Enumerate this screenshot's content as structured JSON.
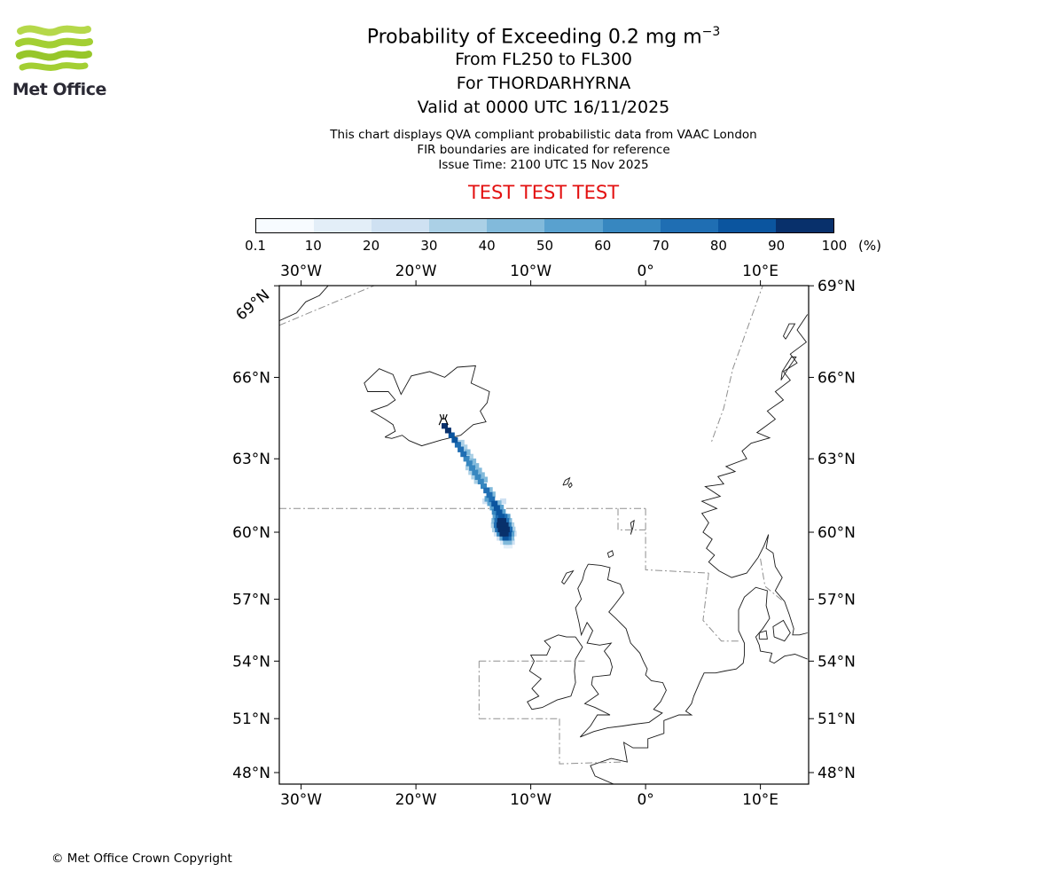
{
  "logo": {
    "text": "Met Office"
  },
  "header": {
    "title_main": "Probability of Exceeding 0.2 mg m",
    "title_exponent": "−3",
    "subtitle1": "From FL250 to FL300",
    "subtitle2": "For THORDARHYRNA",
    "subtitle3": "Valid at 0000 UTC 16/11/2025",
    "note1": "This chart displays QVA compliant probabilistic data from VAAC London",
    "note2": "FIR boundaries are indicated for reference",
    "note3": "Issue Time: 2100 UTC 15 Nov 2025",
    "test_banner": "TEST TEST TEST",
    "test_color": "#e31010"
  },
  "legend": {
    "tick_labels": [
      "0.1",
      "10",
      "20",
      "30",
      "40",
      "50",
      "60",
      "70",
      "80",
      "90",
      "100"
    ],
    "unit": "(%)",
    "colors": [
      "#f7fbff",
      "#e3eef8",
      "#cfe1f2",
      "#abd0e6",
      "#82badb",
      "#59a1cf",
      "#3787c0",
      "#1f6eb3",
      "#0b559f",
      "#08306b"
    ]
  },
  "map": {
    "lon_labels": [
      {
        "text": "30°W",
        "lon": -30
      },
      {
        "text": "20°W",
        "lon": -20
      },
      {
        "text": "10°W",
        "lon": -10
      },
      {
        "text": "0°",
        "lon": 0
      },
      {
        "text": "10°E",
        "lon": 10
      }
    ],
    "lat_labels": [
      {
        "text": "69°N",
        "lat": 69
      },
      {
        "text": "66°N",
        "lat": 66
      },
      {
        "text": "63°N",
        "lat": 63
      },
      {
        "text": "60°N",
        "lat": 60
      },
      {
        "text": "57°N",
        "lat": 57
      },
      {
        "text": "54°N",
        "lat": 54
      },
      {
        "text": "51°N",
        "lat": 51
      },
      {
        "text": "48°N",
        "lat": 48
      }
    ]
  },
  "chart_data": {
    "type": "map",
    "projection": "mercator",
    "extent": {
      "lon_min": -31.9,
      "lon_max": 14.1,
      "lat_min": 47.3,
      "lat_max": 69.0
    },
    "quantity": "Probability of exceeding 0.2 mg m-3 volcanic ash, FL250-FL300",
    "levels_percent": [
      0.1,
      10,
      20,
      30,
      40,
      50,
      60,
      70,
      80,
      90,
      100
    ],
    "volcano": {
      "name": "THORDARHYRNA",
      "lon": -17.6,
      "lat": 64.45
    },
    "plume_cells": [
      [
        -17.5,
        64.25,
        9
      ],
      [
        -17.2,
        64.08,
        9
      ],
      [
        -16.9,
        63.9,
        8
      ],
      [
        -16.62,
        63.72,
        8
      ],
      [
        -16.35,
        63.54,
        7
      ],
      [
        -16.1,
        63.36,
        7
      ],
      [
        -15.85,
        63.18,
        7
      ],
      [
        -15.6,
        63.0,
        6
      ],
      [
        -15.35,
        62.82,
        6
      ],
      [
        -15.1,
        62.64,
        6
      ],
      [
        -14.85,
        62.46,
        6
      ],
      [
        -14.6,
        62.28,
        6
      ],
      [
        -14.35,
        62.1,
        6
      ],
      [
        -14.1,
        61.92,
        6
      ],
      [
        -16.05,
        63.62,
        3
      ],
      [
        -15.78,
        63.44,
        3
      ],
      [
        -15.52,
        63.26,
        4
      ],
      [
        -15.27,
        63.08,
        3
      ],
      [
        -15.02,
        62.9,
        4
      ],
      [
        -14.77,
        62.72,
        4
      ],
      [
        -14.52,
        62.54,
        4
      ],
      [
        -14.27,
        62.36,
        4
      ],
      [
        -14.02,
        62.18,
        4
      ],
      [
        -15.42,
        62.66,
        3
      ],
      [
        -15.17,
        62.48,
        3
      ],
      [
        -14.92,
        62.3,
        3
      ],
      [
        -14.67,
        62.12,
        3
      ],
      [
        -13.85,
        61.74,
        7
      ],
      [
        -13.6,
        61.56,
        7
      ],
      [
        -13.38,
        61.38,
        7
      ],
      [
        -13.16,
        61.2,
        8
      ],
      [
        -12.95,
        61.02,
        8
      ],
      [
        -12.75,
        60.84,
        8
      ],
      [
        -13.75,
        61.4,
        5
      ],
      [
        -13.52,
        61.22,
        5
      ],
      [
        -13.3,
        61.04,
        5
      ],
      [
        -13.58,
        61.76,
        4
      ],
      [
        -13.34,
        61.58,
        4
      ],
      [
        -12.82,
        61.22,
        4
      ],
      [
        -12.62,
        61.04,
        5
      ],
      [
        -12.45,
        60.86,
        5
      ],
      [
        -13.12,
        60.86,
        6
      ],
      [
        -12.4,
        61.3,
        2
      ],
      [
        -13.95,
        61.3,
        2
      ],
      [
        -13.05,
        60.66,
        5
      ],
      [
        -12.8,
        60.66,
        7
      ],
      [
        -12.55,
        60.66,
        8
      ],
      [
        -12.3,
        60.66,
        7
      ],
      [
        -12.05,
        60.66,
        5
      ],
      [
        -13.15,
        60.48,
        4
      ],
      [
        -12.9,
        60.48,
        7
      ],
      [
        -12.65,
        60.48,
        9
      ],
      [
        -12.4,
        60.48,
        9
      ],
      [
        -12.15,
        60.48,
        7
      ],
      [
        -11.9,
        60.48,
        4
      ],
      [
        -13.2,
        60.3,
        3
      ],
      [
        -12.95,
        60.3,
        7
      ],
      [
        -12.7,
        60.3,
        9
      ],
      [
        -12.45,
        60.3,
        9
      ],
      [
        -12.2,
        60.3,
        9
      ],
      [
        -11.95,
        60.3,
        6
      ],
      [
        -11.7,
        60.3,
        3
      ],
      [
        -13.1,
        60.12,
        3
      ],
      [
        -12.85,
        60.12,
        7
      ],
      [
        -12.6,
        60.12,
        9
      ],
      [
        -12.35,
        60.12,
        9
      ],
      [
        -12.1,
        60.12,
        9
      ],
      [
        -11.85,
        60.12,
        7
      ],
      [
        -11.6,
        60.12,
        3
      ],
      [
        -12.95,
        59.94,
        2
      ],
      [
        -12.7,
        59.94,
        6
      ],
      [
        -12.45,
        59.94,
        9
      ],
      [
        -12.2,
        59.94,
        9
      ],
      [
        -11.95,
        59.94,
        8
      ],
      [
        -11.7,
        59.94,
        5
      ],
      [
        -11.5,
        59.94,
        2
      ],
      [
        -12.7,
        59.76,
        2
      ],
      [
        -12.45,
        59.76,
        5
      ],
      [
        -12.2,
        59.76,
        8
      ],
      [
        -11.95,
        59.76,
        7
      ],
      [
        -11.7,
        59.76,
        4
      ],
      [
        -12.4,
        59.58,
        1
      ],
      [
        -12.15,
        59.58,
        4
      ],
      [
        -11.9,
        59.58,
        4
      ],
      [
        -11.65,
        59.58,
        2
      ],
      [
        -12.1,
        59.42,
        1
      ],
      [
        -11.85,
        59.42,
        1
      ]
    ]
  },
  "footer": {
    "copyright": "© Met Office Crown Copyright"
  }
}
